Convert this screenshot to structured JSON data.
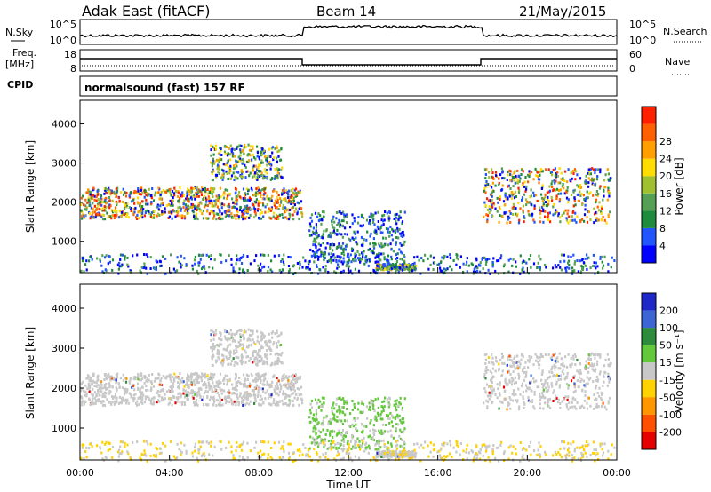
{
  "header": {
    "station": "Adak East (fitACF)",
    "beam": "Beam 14",
    "date": "21/May/2015"
  },
  "top_panel": {
    "left_label": "N.Sky",
    "right_label": "N.Search",
    "left_ticks": [
      "10^5",
      "10^0"
    ],
    "right_ticks": [
      "10^5",
      "10^0"
    ]
  },
  "freq_panel": {
    "left_label_1": "Freq.",
    "left_label_2": "[MHz]",
    "right_label": "Nave",
    "left_ticks": [
      "18",
      "8"
    ],
    "right_ticks": [
      "60",
      "0"
    ]
  },
  "cpid": {
    "label": "CPID",
    "text": "normalsound (fast) 157 RF"
  },
  "chart_data": [
    {
      "type": "heatmap",
      "name": "power",
      "ylabel": "Slant Range [km]",
      "ylim": [
        200,
        4600
      ],
      "yticks": [
        "1000",
        "2000",
        "3000",
        "4000"
      ],
      "colorbar": {
        "label": "Power [dB]",
        "ticks": [
          "4",
          "8",
          "12",
          "16",
          "20",
          "24",
          "28"
        ],
        "colors": [
          "#0000ff",
          "#2355ff",
          "#1e8c3c",
          "#55a055",
          "#a0c030",
          "#ffdd00",
          "#ffa000",
          "#ff6000",
          "#ff2000"
        ]
      },
      "bands": [
        {
          "t0": 0.0,
          "t1": 9.9,
          "range": [
            1600,
            2400
          ],
          "level": "high"
        },
        {
          "t0": 5.8,
          "t1": 9.0,
          "range": [
            2600,
            3500
          ],
          "level": "mid"
        },
        {
          "t0": 10.2,
          "t1": 14.5,
          "range": [
            500,
            1800
          ],
          "level": "low"
        },
        {
          "t0": 13.2,
          "t1": 15.0,
          "range": [
            300,
            450
          ],
          "level": "mid"
        },
        {
          "t0": 18.0,
          "t1": 23.7,
          "range": [
            1500,
            2900
          ],
          "level": "high"
        }
      ]
    },
    {
      "type": "heatmap",
      "name": "velocity",
      "ylabel": "Slant Range [km]",
      "ylim": [
        200,
        4600
      ],
      "yticks": [
        "1000",
        "2000",
        "3000",
        "4000"
      ],
      "xlabel": "Time UT",
      "xticks": [
        "00:00",
        "04:00",
        "08:00",
        "12:00",
        "16:00",
        "20:00",
        "00:00"
      ],
      "colorbar": {
        "label": "Velocity [m s⁻¹]",
        "ticks": [
          "200",
          "100",
          "50",
          "15",
          "-15",
          "-50",
          "-100",
          "-200"
        ],
        "colors": [
          "#1e28c8",
          "#3c64d2",
          "#2d8c3c",
          "#64c83c",
          "#c8c8c8",
          "#ffd200",
          "#ff9600",
          "#ff5000",
          "#e60000"
        ]
      }
    }
  ]
}
